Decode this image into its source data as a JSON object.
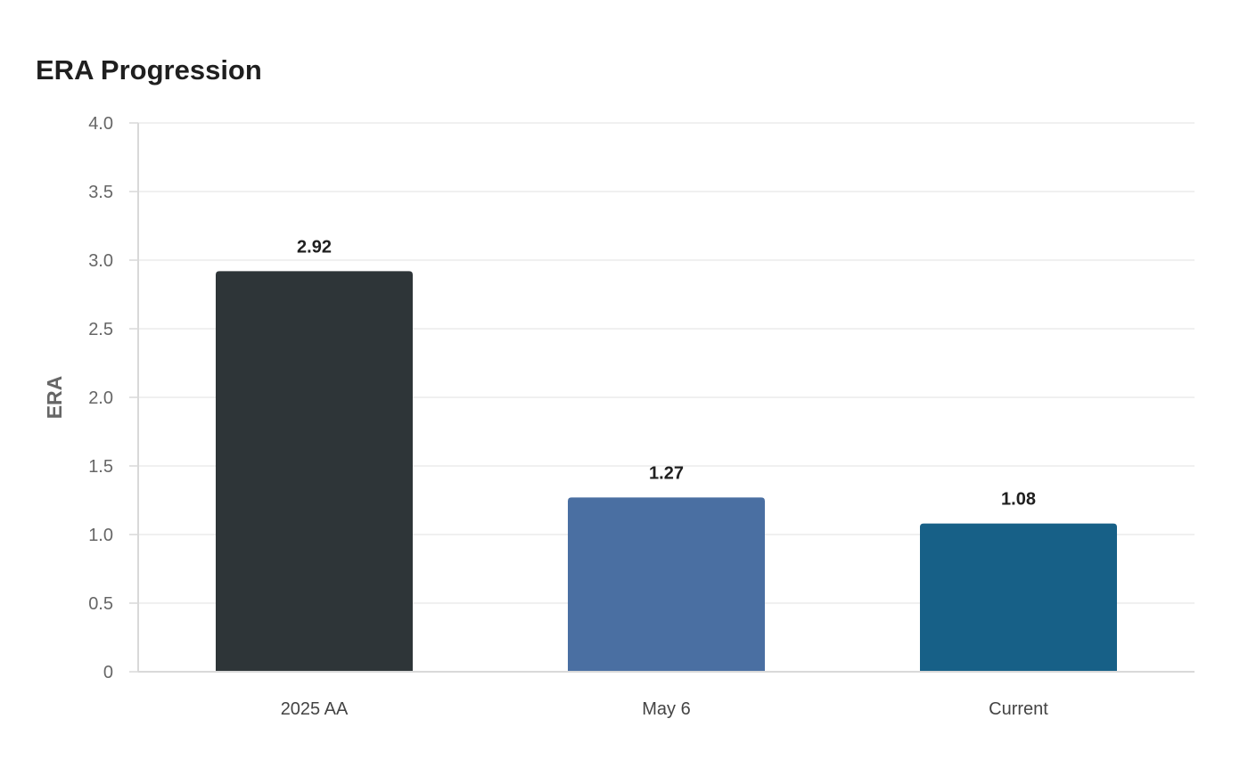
{
  "chart_data": {
    "type": "bar",
    "title": "ERA Progression",
    "xlabel": "",
    "ylabel": "ERA",
    "ylim": [
      0,
      4.0
    ],
    "yticks": [
      "0",
      "0.5",
      "1.0",
      "1.5",
      "2.0",
      "2.5",
      "3.0",
      "3.5",
      "4.0"
    ],
    "categories": [
      "2025 AA",
      "May 6",
      "Current"
    ],
    "values": [
      2.92,
      1.27,
      1.08
    ],
    "data_labels": [
      "2.92",
      "1.27",
      "1.08"
    ],
    "colors": [
      "#2e3538",
      "#4a6fa2",
      "#176087"
    ],
    "grid": true,
    "legend": "none"
  }
}
